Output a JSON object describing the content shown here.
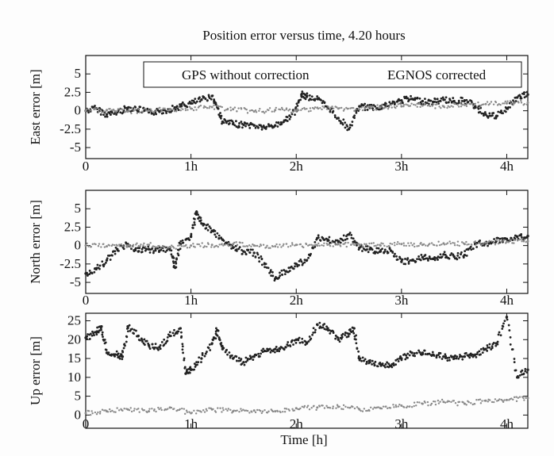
{
  "title": "Position error versus time, 4.20 hours",
  "xlabel": "Time [h]",
  "legend": [
    "GPS without correction",
    "EGNOS corrected"
  ],
  "chart_data": [
    {
      "type": "scatter",
      "ylabel": "East error [m]",
      "xlim": [
        0,
        4.2
      ],
      "ylim": [
        -6.5,
        7.5
      ],
      "xticks": [
        "0",
        "1h",
        "2h",
        "3h",
        "4h"
      ],
      "yticks": [
        "5",
        "2.5",
        "0",
        "-2.5",
        "-5"
      ],
      "yticks_values": [
        5,
        2.5,
        0,
        -2.5,
        -5
      ],
      "series": [
        {
          "name": "GPS without correction",
          "x": [
            0.0,
            0.1,
            0.2,
            0.3,
            0.4,
            0.5,
            0.6,
            0.7,
            0.8,
            0.9,
            1.0,
            1.1,
            1.2,
            1.25,
            1.3,
            1.4,
            1.5,
            1.6,
            1.7,
            1.8,
            1.9,
            2.0,
            2.05,
            2.1,
            2.2,
            2.3,
            2.4,
            2.5,
            2.6,
            2.7,
            2.8,
            2.9,
            3.0,
            3.1,
            3.2,
            3.3,
            3.4,
            3.5,
            3.6,
            3.7,
            3.8,
            3.9,
            4.0,
            4.1,
            4.2
          ],
          "y": [
            0.0,
            0.3,
            -0.5,
            -0.2,
            0.4,
            0.2,
            -0.2,
            -0.1,
            0.2,
            0.6,
            1.0,
            1.5,
            2.0,
            0.5,
            -1.5,
            -1.8,
            -1.9,
            -2.0,
            -2.3,
            -2.0,
            -1.3,
            0.0,
            2.2,
            1.9,
            1.6,
            0.5,
            -1.0,
            -2.5,
            0.6,
            0.4,
            0.6,
            0.9,
            1.4,
            1.6,
            1.3,
            1.2,
            1.5,
            1.3,
            1.4,
            0.6,
            -0.5,
            -0.8,
            0.3,
            1.8,
            2.2
          ]
        },
        {
          "name": "EGNOS corrected",
          "x": [
            0.0,
            0.2,
            0.4,
            0.6,
            0.8,
            1.0,
            1.2,
            1.4,
            1.6,
            1.8,
            2.0,
            2.2,
            2.4,
            2.6,
            2.8,
            3.0,
            3.2,
            3.4,
            3.6,
            3.8,
            4.0,
            4.2
          ],
          "y": [
            0.0,
            0.1,
            -0.1,
            0.0,
            0.2,
            0.3,
            0.5,
            0.2,
            -0.1,
            0.1,
            0.0,
            0.4,
            0.3,
            0.2,
            0.5,
            0.6,
            0.7,
            0.6,
            0.8,
            0.9,
            1.0,
            1.1
          ]
        }
      ]
    },
    {
      "type": "scatter",
      "ylabel": "North error [m]",
      "xlim": [
        0,
        4.2
      ],
      "ylim": [
        -6.5,
        7.5
      ],
      "xticks": [
        "0",
        "1h",
        "2h",
        "3h",
        "4h"
      ],
      "yticks": [
        "5",
        "2.5",
        "0",
        "-2.5",
        "-5"
      ],
      "yticks_values": [
        5,
        2.5,
        0,
        -2.5,
        -5
      ],
      "series": [
        {
          "name": "GPS without correction",
          "x": [
            0.0,
            0.1,
            0.2,
            0.3,
            0.4,
            0.5,
            0.6,
            0.7,
            0.8,
            0.85,
            0.9,
            1.0,
            1.05,
            1.1,
            1.2,
            1.3,
            1.4,
            1.5,
            1.6,
            1.7,
            1.8,
            1.9,
            2.0,
            2.1,
            2.2,
            2.3,
            2.4,
            2.5,
            2.6,
            2.7,
            2.8,
            2.9,
            3.0,
            3.1,
            3.2,
            3.3,
            3.4,
            3.5,
            3.6,
            3.7,
            3.8,
            3.9,
            4.0,
            4.1,
            4.2
          ],
          "y": [
            -3.8,
            -3.2,
            -2.0,
            -0.5,
            0.2,
            -0.8,
            -0.5,
            -0.7,
            -0.3,
            -3.0,
            0.2,
            1.2,
            4.5,
            3.0,
            2.0,
            0.8,
            -0.3,
            -0.8,
            -1.0,
            -2.5,
            -4.5,
            -3.5,
            -2.5,
            -2.0,
            1.0,
            0.8,
            0.5,
            1.5,
            -0.3,
            -0.5,
            -0.8,
            -0.7,
            -2.2,
            -2.0,
            -1.6,
            -1.8,
            -1.2,
            -1.5,
            -1.3,
            0.2,
            0.3,
            0.6,
            0.9,
            1.2,
            1.3
          ]
        },
        {
          "name": "EGNOS corrected",
          "x": [
            0.0,
            0.2,
            0.4,
            0.6,
            0.8,
            1.0,
            1.2,
            1.4,
            1.6,
            1.8,
            2.0,
            2.2,
            2.4,
            2.6,
            2.8,
            3.0,
            3.2,
            3.4,
            3.6,
            3.8,
            4.0,
            4.2
          ],
          "y": [
            0.0,
            -0.1,
            0.0,
            0.1,
            -0.2,
            0.0,
            0.1,
            0.2,
            0.0,
            -0.1,
            0.1,
            0.0,
            0.2,
            0.1,
            0.0,
            0.2,
            0.1,
            0.3,
            0.2,
            0.4,
            0.5,
            0.6
          ]
        }
      ]
    },
    {
      "type": "scatter",
      "ylabel": "Up error [m]",
      "xlim": [
        0,
        4.2
      ],
      "ylim": [
        -3.5,
        27
      ],
      "xticks": [
        "0",
        "1h",
        "2h",
        "3h",
        "4h"
      ],
      "yticks": [
        "25",
        "20",
        "15",
        "10",
        "5",
        "0"
      ],
      "yticks_values": [
        25,
        20,
        15,
        10,
        5,
        0
      ],
      "series": [
        {
          "name": "GPS without correction",
          "x": [
            0.0,
            0.1,
            0.15,
            0.2,
            0.3,
            0.35,
            0.4,
            0.5,
            0.6,
            0.7,
            0.8,
            0.9,
            0.95,
            1.0,
            1.1,
            1.2,
            1.25,
            1.3,
            1.4,
            1.5,
            1.6,
            1.7,
            1.8,
            1.9,
            2.0,
            2.1,
            2.2,
            2.3,
            2.4,
            2.5,
            2.55,
            2.6,
            2.7,
            2.8,
            2.9,
            3.0,
            3.1,
            3.2,
            3.3,
            3.4,
            3.5,
            3.6,
            3.7,
            3.8,
            3.9,
            4.0,
            4.1,
            4.2
          ],
          "y": [
            20.5,
            22.0,
            23.5,
            16.5,
            16.0,
            15.5,
            23.5,
            21.0,
            18.5,
            18.0,
            21.0,
            23.0,
            11.0,
            12.0,
            15.0,
            19.0,
            22.5,
            17.5,
            15.0,
            14.0,
            15.5,
            17.0,
            17.5,
            18.0,
            20.0,
            19.0,
            24.0,
            23.0,
            20.0,
            21.5,
            23.0,
            15.0,
            14.0,
            13.5,
            13.0,
            15.0,
            16.5,
            16.5,
            16.0,
            15.5,
            15.0,
            15.5,
            16.0,
            17.5,
            19.0,
            26.0,
            10.0,
            12.0
          ]
        },
        {
          "name": "EGNOS corrected",
          "x": [
            0.0,
            0.2,
            0.4,
            0.6,
            0.8,
            1.0,
            1.2,
            1.4,
            1.6,
            1.8,
            2.0,
            2.2,
            2.4,
            2.6,
            2.8,
            3.0,
            3.2,
            3.4,
            3.6,
            3.8,
            4.0,
            4.2
          ],
          "y": [
            0.5,
            1.0,
            1.5,
            1.0,
            2.0,
            0.5,
            1.5,
            1.0,
            1.2,
            1.0,
            1.8,
            2.0,
            2.2,
            1.5,
            1.8,
            2.5,
            3.0,
            3.5,
            3.0,
            3.8,
            4.0,
            4.5
          ]
        }
      ]
    }
  ]
}
